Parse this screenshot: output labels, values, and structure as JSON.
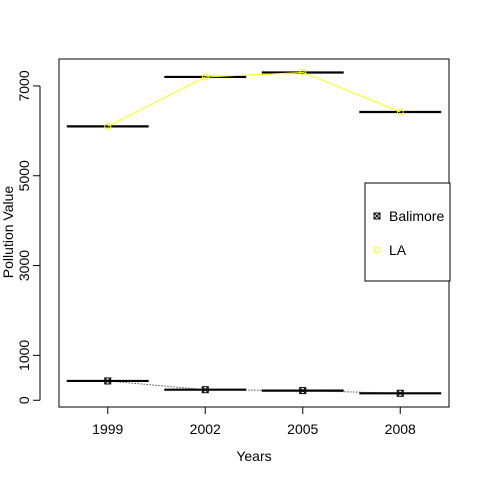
{
  "chart_data": {
    "type": "line",
    "title": "",
    "xlabel": "Years",
    "ylabel": "Pollution Value",
    "x": [
      "1999",
      "2002",
      "2005",
      "2008"
    ],
    "xlim": [
      0.5,
      4.5
    ],
    "ylim": [
      -150,
      7600
    ],
    "y_ticks": [
      0,
      1000,
      3000,
      5000,
      7000
    ],
    "grid": false,
    "legend_position": "right",
    "series": [
      {
        "name": "Balimore",
        "values": [
          430,
          235,
          215,
          155
        ],
        "color": "#000000",
        "line_style": "dotted",
        "marker": "square-x",
        "bar_half_width": 0.42
      },
      {
        "name": "LA",
        "values": [
          6100,
          7200,
          7300,
          6420
        ],
        "color": "#ffff00",
        "line_style": "solid",
        "marker": "circle",
        "bar_half_width": 0.42
      }
    ]
  }
}
